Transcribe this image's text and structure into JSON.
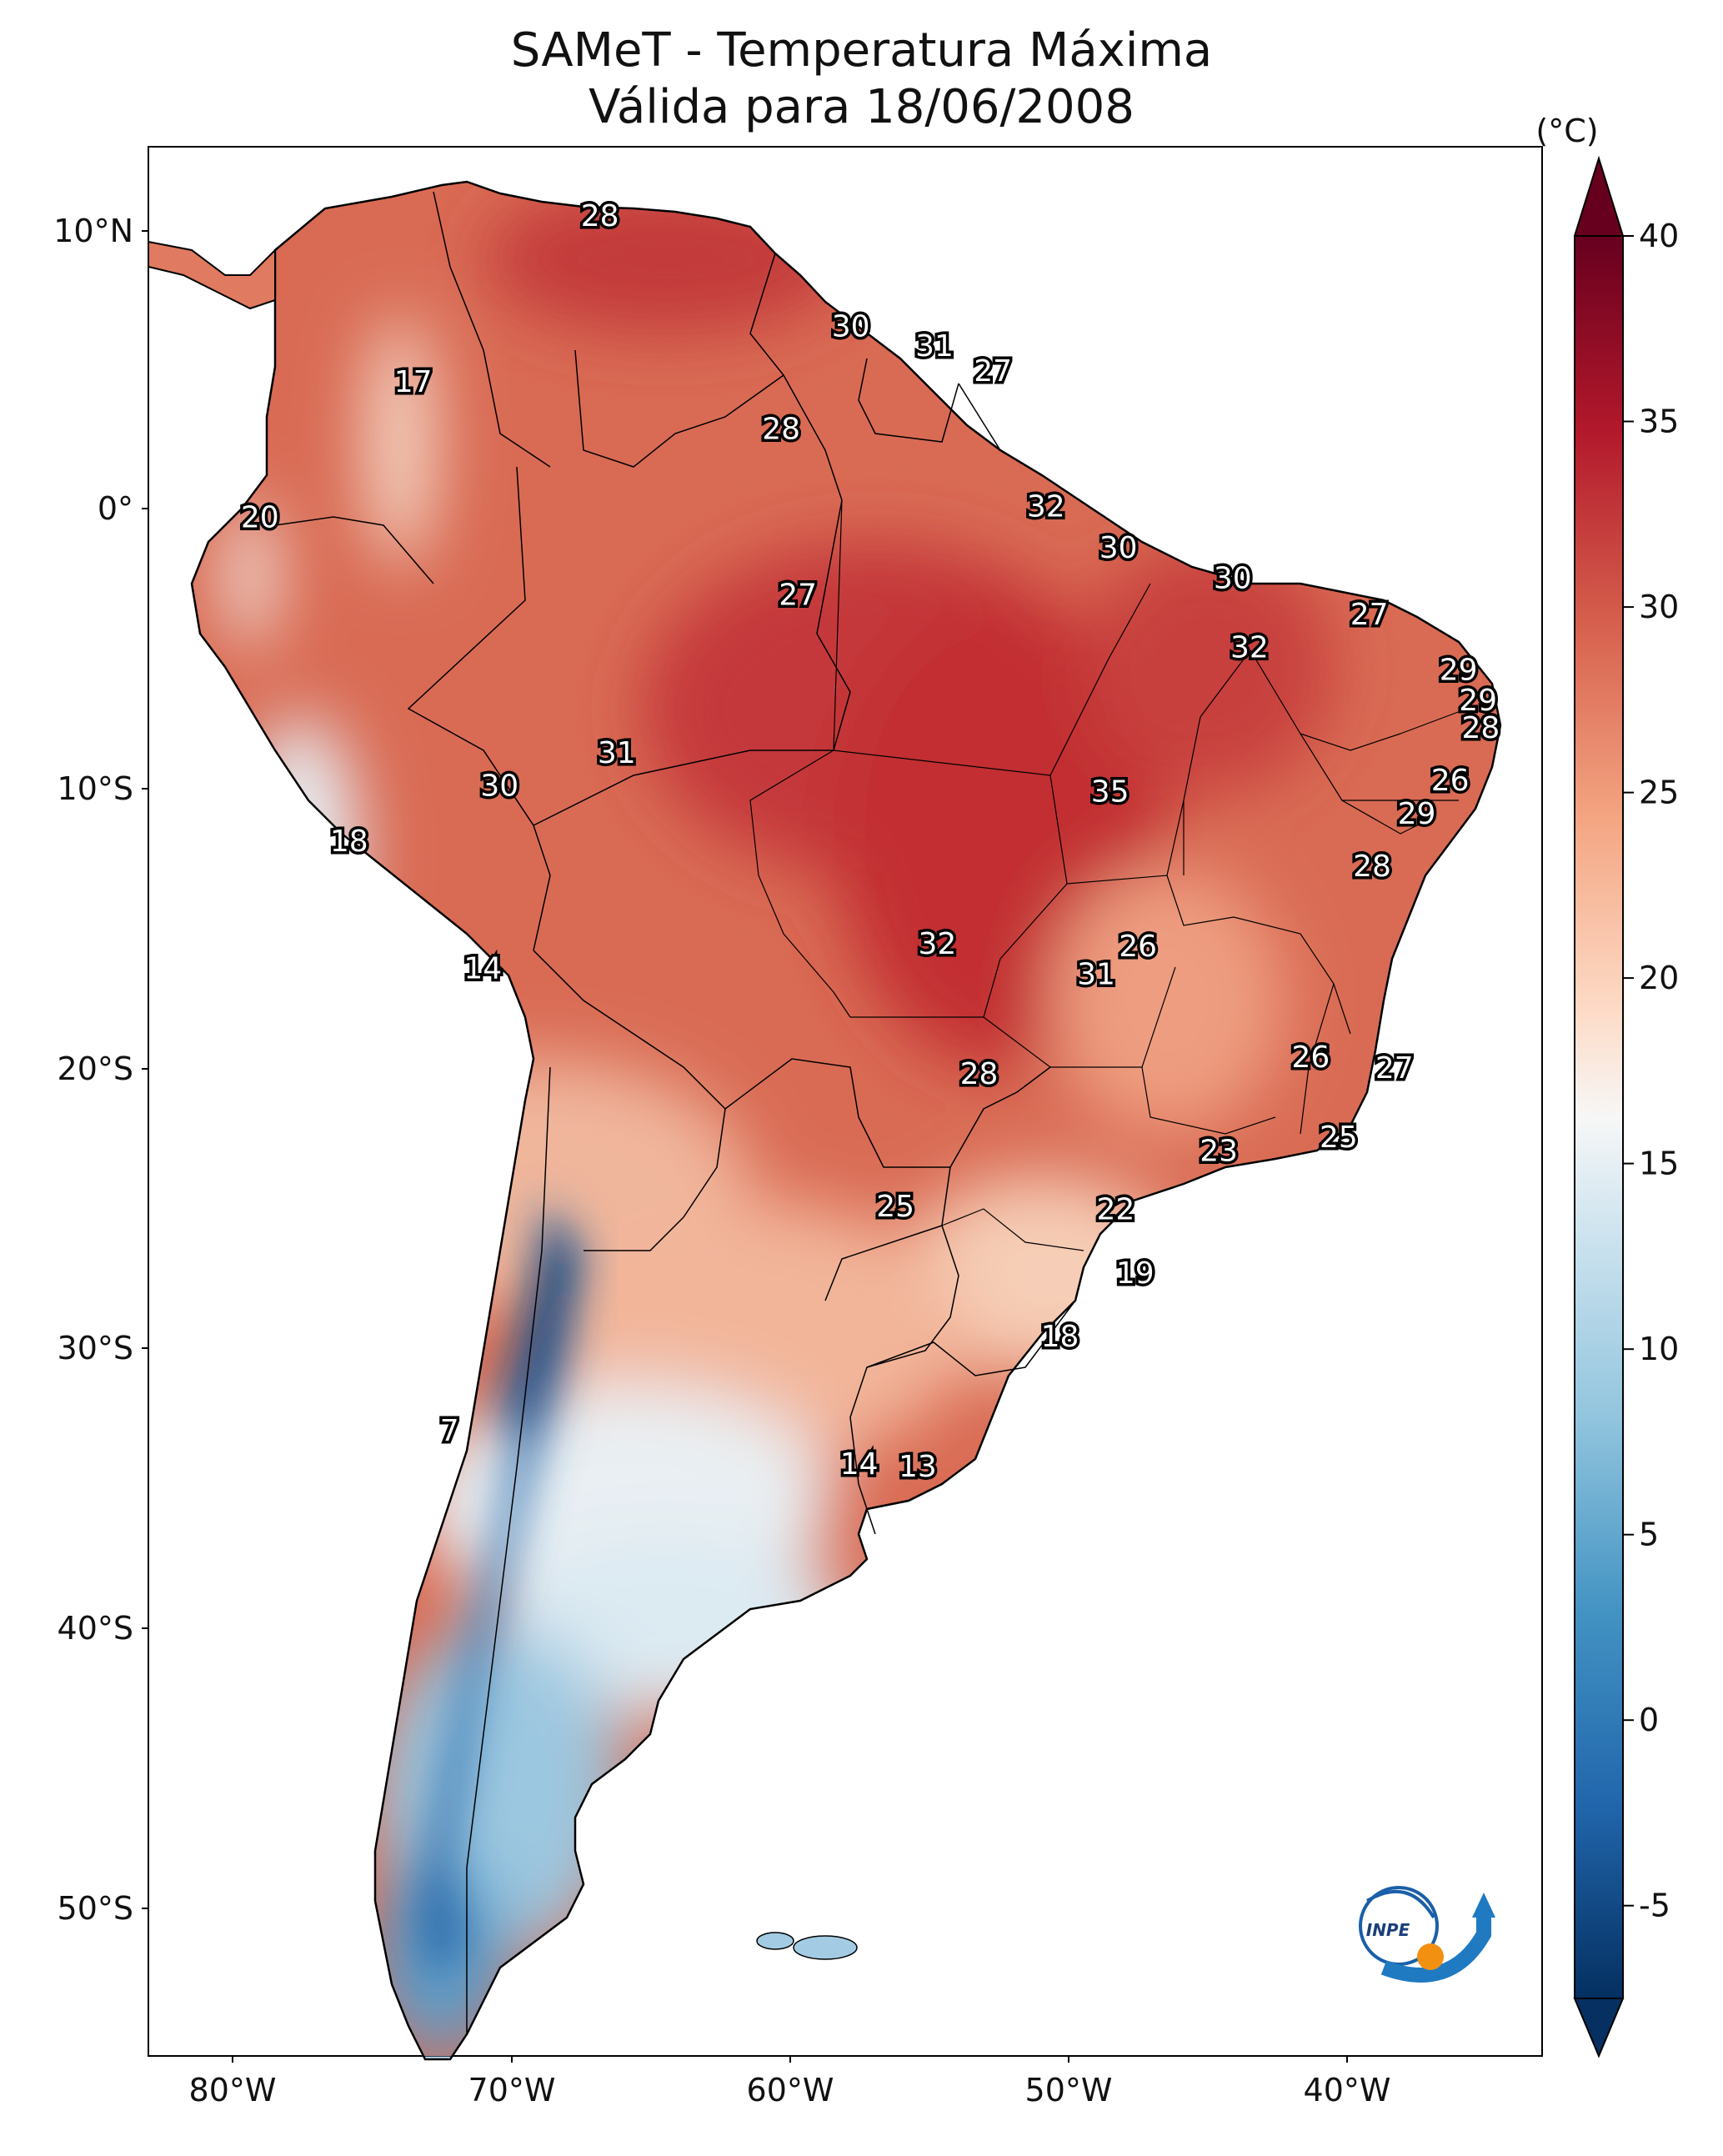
{
  "title": {
    "line1": "SAMeT - Temperatura Máxima",
    "line2": "Válida para 18/06/2008"
  },
  "colorbar": {
    "unit": "(°C)",
    "ticks": [
      "40",
      "35",
      "30",
      "25",
      "20",
      "15",
      "10",
      "5",
      "0",
      "-5"
    ],
    "colors": [
      "#67001f",
      "#b2182b",
      "#d6604d",
      "#f4a582",
      "#fddbc7",
      "#f7f7f7",
      "#d1e5f0",
      "#92c5de",
      "#4393c3",
      "#2166ac",
      "#053061"
    ]
  },
  "axes": {
    "lat_ticks": [
      "10°N",
      "0°",
      "10°S",
      "20°S",
      "30°S",
      "40°S",
      "50°S"
    ],
    "lon_ticks": [
      "80°W",
      "70°W",
      "60°W",
      "50°W",
      "40°W"
    ]
  },
  "map_data": {
    "extent": {
      "lon": [
        -83,
        -33
      ],
      "lat": [
        -56,
        13
      ]
    },
    "labels": [
      {
        "v": "28",
        "lon": -66.8,
        "lat": 10.5
      },
      {
        "v": "30",
        "lon": -57.8,
        "lat": 6.5
      },
      {
        "v": "31",
        "lon": -54.8,
        "lat": 5.8
      },
      {
        "v": "27",
        "lon": -52.7,
        "lat": 4.9
      },
      {
        "v": "17",
        "lon": -73.5,
        "lat": 4.5
      },
      {
        "v": "28",
        "lon": -60.3,
        "lat": 2.8
      },
      {
        "v": "32",
        "lon": -50.8,
        "lat": 0.0
      },
      {
        "v": "20",
        "lon": -79.0,
        "lat": -0.4
      },
      {
        "v": "30",
        "lon": -48.2,
        "lat": -1.5
      },
      {
        "v": "30",
        "lon": -44.1,
        "lat": -2.6
      },
      {
        "v": "27",
        "lon": -59.7,
        "lat": -3.2
      },
      {
        "v": "27",
        "lon": -39.2,
        "lat": -3.9
      },
      {
        "v": "32",
        "lon": -43.5,
        "lat": -5.1
      },
      {
        "v": "29",
        "lon": -36.0,
        "lat": -5.9
      },
      {
        "v": "29",
        "lon": -35.3,
        "lat": -7.0
      },
      {
        "v": "28",
        "lon": -35.2,
        "lat": -8.0
      },
      {
        "v": "31",
        "lon": -66.2,
        "lat": -8.9
      },
      {
        "v": "26",
        "lon": -36.3,
        "lat": -9.9
      },
      {
        "v": "30",
        "lon": -70.4,
        "lat": -10.1
      },
      {
        "v": "35",
        "lon": -48.5,
        "lat": -10.3
      },
      {
        "v": "29",
        "lon": -37.5,
        "lat": -11.1
      },
      {
        "v": "18",
        "lon": -75.8,
        "lat": -12.1
      },
      {
        "v": "28",
        "lon": -39.1,
        "lat": -13.0
      },
      {
        "v": "32",
        "lon": -54.7,
        "lat": -15.8
      },
      {
        "v": "26",
        "lon": -47.5,
        "lat": -15.9
      },
      {
        "v": "14",
        "lon": -71.0,
        "lat": -16.7
      },
      {
        "v": "31",
        "lon": -49.0,
        "lat": -16.9
      },
      {
        "v": "26",
        "lon": -41.3,
        "lat": -19.9
      },
      {
        "v": "27",
        "lon": -38.3,
        "lat": -20.3
      },
      {
        "v": "28",
        "lon": -53.2,
        "lat": -20.5
      },
      {
        "v": "25",
        "lon": -40.3,
        "lat": -22.8
      },
      {
        "v": "23",
        "lon": -44.6,
        "lat": -23.3
      },
      {
        "v": "25",
        "lon": -56.2,
        "lat": -25.3
      },
      {
        "v": "22",
        "lon": -48.3,
        "lat": -25.4
      },
      {
        "v": "19",
        "lon": -47.6,
        "lat": -27.7
      },
      {
        "v": "18",
        "lon": -50.3,
        "lat": -30.0
      },
      {
        "v": "7",
        "lon": -72.2,
        "lat": -33.4
      },
      {
        "v": "14",
        "lon": -57.5,
        "lat": -34.6
      },
      {
        "v": "13",
        "lon": -55.4,
        "lat": -34.7
      }
    ]
  },
  "logo": {
    "text": "INPE"
  }
}
